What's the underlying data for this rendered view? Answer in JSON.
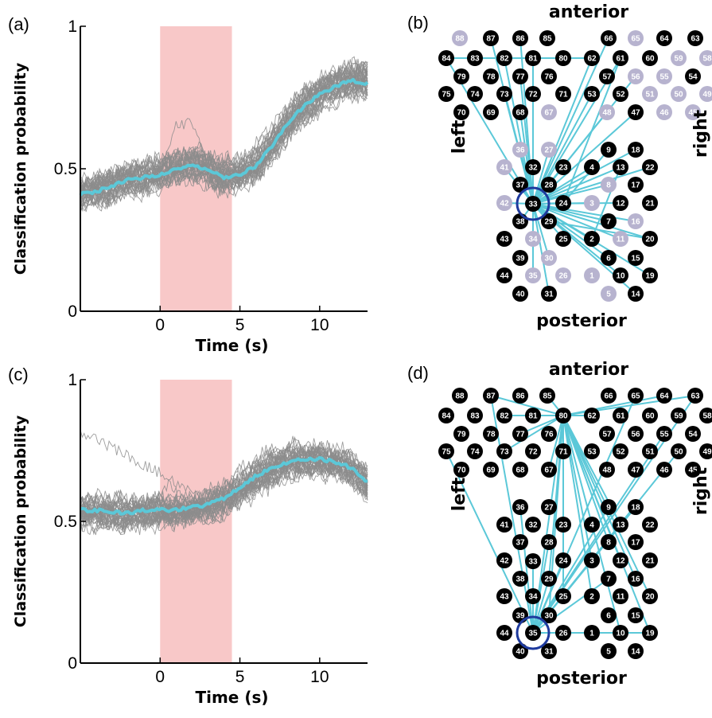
{
  "panels": {
    "a": {
      "label": "(a)"
    },
    "b": {
      "label": "(b)"
    },
    "c": {
      "label": "(c)"
    },
    "d": {
      "label": "(d)"
    }
  },
  "chart_data": [
    {
      "panel": "a",
      "type": "line",
      "ylabel": "Classification probability",
      "xlabel": "Time (s)",
      "xlim": [
        -5,
        13
      ],
      "ylim": [
        0,
        1
      ],
      "xticks": [
        "0",
        "5",
        "10"
      ],
      "yticks": [
        "0",
        "0.5",
        "1"
      ],
      "shaded_interval": [
        0,
        4.5
      ],
      "shade_color": "#f8c8c8",
      "trial_color": "#8c8c8c",
      "mean_color": "#5bc8d8",
      "n_trials": 40,
      "mean": {
        "x": [
          -5,
          -4,
          -3,
          -2,
          -1,
          0,
          1,
          2,
          3,
          4,
          5,
          6,
          7,
          8,
          9,
          10,
          11,
          12,
          13
        ],
        "y": [
          0.41,
          0.42,
          0.44,
          0.46,
          0.47,
          0.48,
          0.5,
          0.51,
          0.5,
          0.47,
          0.48,
          0.51,
          0.58,
          0.66,
          0.72,
          0.76,
          0.79,
          0.81,
          0.8
        ]
      }
    },
    {
      "panel": "c",
      "type": "line",
      "ylabel": "Classification probability",
      "xlabel": "Time (s)",
      "xlim": [
        -5,
        13
      ],
      "ylim": [
        0,
        1
      ],
      "xticks": [
        "0",
        "5",
        "10"
      ],
      "yticks": [
        "0",
        "0.5",
        "1"
      ],
      "shaded_interval": [
        0,
        4.5
      ],
      "shade_color": "#f8c8c8",
      "trial_color": "#8c8c8c",
      "mean_color": "#5bc8d8",
      "n_trials": 40,
      "mean": {
        "x": [
          -5,
          -4,
          -3,
          -2,
          -1,
          0,
          1,
          2,
          3,
          4,
          5,
          6,
          7,
          8,
          9,
          10,
          11,
          12,
          13
        ],
        "y": [
          0.54,
          0.54,
          0.53,
          0.53,
          0.54,
          0.54,
          0.54,
          0.55,
          0.56,
          0.58,
          0.62,
          0.66,
          0.69,
          0.71,
          0.72,
          0.72,
          0.71,
          0.69,
          0.64
        ]
      }
    }
  ],
  "maps": {
    "b": {
      "anterior": "anterior",
      "posterior": "posterior",
      "left": "left",
      "right": "right",
      "dim_nodes": [
        "88",
        "65",
        "59",
        "58",
        "55",
        "56",
        "51",
        "50",
        "49",
        "46",
        "45",
        "48",
        "67",
        "36",
        "27",
        "41",
        "42",
        "8",
        "3",
        "16",
        "11",
        "34",
        "30",
        "35",
        "26",
        "1",
        "5"
      ],
      "hub": "33",
      "edges": [
        [
          "84",
          "33"
        ],
        [
          "84",
          "62"
        ],
        [
          "87",
          "33"
        ],
        [
          "86",
          "33"
        ],
        [
          "82",
          "33"
        ],
        [
          "81",
          "33"
        ],
        [
          "77",
          "33"
        ],
        [
          "73",
          "33"
        ],
        [
          "68",
          "33"
        ],
        [
          "66",
          "33"
        ],
        [
          "62",
          "33"
        ],
        [
          "61",
          "33"
        ],
        [
          "61",
          "24"
        ],
        [
          "48",
          "33"
        ],
        [
          "47",
          "33"
        ],
        [
          "53",
          "33"
        ],
        [
          "56",
          "33"
        ],
        [
          "36",
          "33"
        ],
        [
          "27",
          "33"
        ],
        [
          "23",
          "33"
        ],
        [
          "9",
          "24"
        ],
        [
          "13",
          "33"
        ],
        [
          "22",
          "33"
        ],
        [
          "18",
          "33"
        ],
        [
          "4",
          "33"
        ],
        [
          "8",
          "33"
        ],
        [
          "3",
          "33"
        ],
        [
          "12",
          "33"
        ],
        [
          "7",
          "33"
        ],
        [
          "16",
          "33"
        ],
        [
          "20",
          "33"
        ],
        [
          "11",
          "33"
        ],
        [
          "2",
          "33"
        ],
        [
          "25",
          "33"
        ],
        [
          "6",
          "33"
        ],
        [
          "10",
          "33"
        ],
        [
          "19",
          "33"
        ],
        [
          "14",
          "33"
        ],
        [
          "31",
          "33"
        ],
        [
          "30",
          "33"
        ],
        [
          "34",
          "33"
        ],
        [
          "35",
          "33"
        ],
        [
          "42",
          "33"
        ],
        [
          "41",
          "33"
        ],
        [
          "37",
          "33"
        ],
        [
          "32",
          "33"
        ],
        [
          "28",
          "33"
        ],
        [
          "29",
          "33"
        ],
        [
          "38",
          "33"
        ],
        [
          "24",
          "33"
        ],
        [
          "20",
          "29"
        ],
        [
          "2",
          "13"
        ]
      ]
    },
    "d": {
      "anterior": "anterior",
      "posterior": "posterior",
      "left": "left",
      "right": "right",
      "dim_nodes": [],
      "hub": "35",
      "edges": [
        [
          "80",
          "85"
        ],
        [
          "80",
          "62"
        ],
        [
          "80",
          "63"
        ],
        [
          "80",
          "64"
        ],
        [
          "80",
          "82"
        ],
        [
          "80",
          "87"
        ],
        [
          "80",
          "77"
        ],
        [
          "80",
          "73"
        ],
        [
          "80",
          "71"
        ],
        [
          "80",
          "67"
        ],
        [
          "80",
          "29"
        ],
        [
          "80",
          "30"
        ],
        [
          "80",
          "25"
        ],
        [
          "80",
          "19"
        ],
        [
          "80",
          "10"
        ],
        [
          "80",
          "13"
        ],
        [
          "80",
          "16"
        ],
        [
          "80",
          "3"
        ],
        [
          "80",
          "2"
        ],
        [
          "80",
          "8"
        ],
        [
          "80",
          "20"
        ],
        [
          "80",
          "12"
        ],
        [
          "80",
          "24"
        ],
        [
          "35",
          "80"
        ],
        [
          "35",
          "87"
        ],
        [
          "35",
          "75"
        ],
        [
          "35",
          "36"
        ],
        [
          "35",
          "33"
        ],
        [
          "35",
          "28"
        ],
        [
          "35",
          "24"
        ],
        [
          "35",
          "26"
        ],
        [
          "35",
          "19"
        ],
        [
          "35",
          "10"
        ],
        [
          "35",
          "1"
        ],
        [
          "35",
          "13"
        ],
        [
          "35",
          "18"
        ],
        [
          "35",
          "9"
        ],
        [
          "35",
          "55"
        ],
        [
          "35",
          "50"
        ],
        [
          "35",
          "65"
        ],
        [
          "35",
          "63"
        ],
        [
          "35",
          "3"
        ],
        [
          "35",
          "7"
        ],
        [
          "35",
          "30"
        ],
        [
          "35",
          "29"
        ]
      ]
    }
  }
}
